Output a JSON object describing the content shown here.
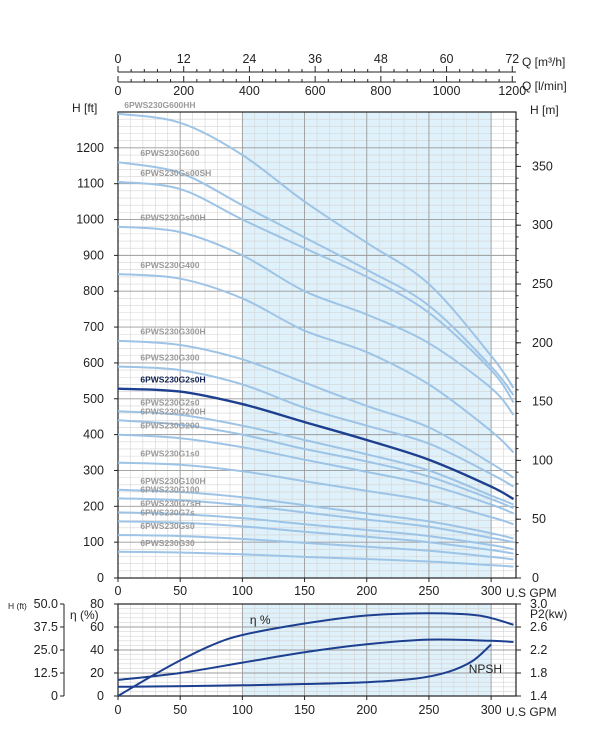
{
  "chart_data": [
    {
      "type": "line",
      "title": "",
      "top_axes": {
        "q_m3h": {
          "label": "Q [m³/h]",
          "ticks": [
            "0",
            "12",
            "24",
            "36",
            "48",
            "60",
            "72"
          ]
        },
        "q_lmin": {
          "label": "Q [l/min]",
          "ticks": [
            "0",
            "200",
            "400",
            "600",
            "800",
            "1000",
            "1200"
          ]
        }
      },
      "xlabel": "U.S GPM",
      "xlim": [
        0,
        320
      ],
      "x_ticks": [
        "0",
        "50",
        "100",
        "150",
        "200",
        "250",
        "300"
      ],
      "ylabel_left": "H [ft]",
      "ylim_left": [
        0,
        1300
      ],
      "y_ticks_left": [
        "0",
        "100",
        "200",
        "300",
        "400",
        "500",
        "600",
        "700",
        "800",
        "900",
        "1000",
        "1100",
        "1200"
      ],
      "ylabel_right": "H [m]",
      "y_ticks_right": [
        "0",
        "50",
        "100",
        "150",
        "200",
        "250",
        "300",
        "350"
      ],
      "grid": true,
      "shaded_x_range": [
        100,
        300
      ],
      "series": [
        {
          "name": "6PWS230G600HH",
          "highlight": false,
          "x": [
            0,
            50,
            100,
            150,
            200,
            250,
            300,
            318
          ],
          "y": [
            1295,
            1270,
            1180,
            1050,
            935,
            820,
            620,
            530
          ]
        },
        {
          "name": "6PWS230G600",
          "highlight": false,
          "x": [
            0,
            50,
            100,
            150,
            200,
            250,
            300,
            318
          ],
          "y": [
            1160,
            1130,
            1040,
            950,
            860,
            760,
            590,
            510
          ]
        },
        {
          "name": "6PWS230Gs00SH",
          "highlight": false,
          "x": [
            0,
            50,
            100,
            150,
            200,
            250,
            300,
            318
          ],
          "y": [
            1105,
            1085,
            1000,
            920,
            840,
            740,
            580,
            490
          ]
        },
        {
          "name": "6PWS230Gs00H",
          "highlight": false,
          "x": [
            0,
            50,
            100,
            150,
            200,
            250,
            300,
            318
          ],
          "y": [
            980,
            965,
            900,
            800,
            735,
            655,
            530,
            455
          ]
        },
        {
          "name": "6PWS230G400",
          "highlight": false,
          "x": [
            0,
            50,
            100,
            150,
            200,
            250,
            300,
            318
          ],
          "y": [
            848,
            835,
            780,
            690,
            630,
            540,
            410,
            350
          ]
        },
        {
          "name": "6PWS230G300H",
          "highlight": false,
          "x": [
            0,
            50,
            100,
            150,
            200,
            250,
            300,
            318
          ],
          "y": [
            662,
            650,
            610,
            545,
            480,
            420,
            320,
            280
          ]
        },
        {
          "name": "6PWS230G300",
          "highlight": false,
          "x": [
            0,
            50,
            100,
            150,
            200,
            250,
            300,
            318
          ],
          "y": [
            590,
            580,
            540,
            475,
            425,
            375,
            290,
            255
          ]
        },
        {
          "name": "6PWS230G2s0H",
          "highlight": true,
          "x": [
            0,
            50,
            100,
            150,
            200,
            250,
            300,
            318
          ],
          "y": [
            528,
            520,
            485,
            435,
            385,
            330,
            255,
            220
          ]
        },
        {
          "name": "6PWS230G2s0",
          "highlight": false,
          "x": [
            0,
            50,
            100,
            150,
            200,
            250,
            300,
            318
          ],
          "y": [
            465,
            455,
            425,
            385,
            345,
            300,
            230,
            205
          ]
        },
        {
          "name": "6PWS230G200H",
          "highlight": false,
          "x": [
            0,
            50,
            100,
            150,
            200,
            250,
            300,
            318
          ],
          "y": [
            440,
            428,
            400,
            360,
            325,
            283,
            220,
            195
          ]
        },
        {
          "name": "6PWS230G200",
          "highlight": false,
          "x": [
            0,
            50,
            100,
            150,
            200,
            250,
            300,
            318
          ],
          "y": [
            400,
            390,
            365,
            330,
            296,
            260,
            205,
            180
          ]
        },
        {
          "name": "6PWS230G1s0",
          "highlight": false,
          "x": [
            0,
            50,
            100,
            150,
            200,
            250,
            300,
            318
          ],
          "y": [
            322,
            316,
            298,
            270,
            243,
            215,
            170,
            150
          ]
        },
        {
          "name": "6PWS230G100H",
          "highlight": false,
          "x": [
            0,
            50,
            100,
            150,
            200,
            250,
            300,
            318
          ],
          "y": [
            246,
            240,
            225,
            203,
            180,
            158,
            125,
            110
          ]
        },
        {
          "name": "6PWS230G100",
          "highlight": false,
          "x": [
            0,
            50,
            100,
            150,
            200,
            250,
            300,
            318
          ],
          "y": [
            222,
            217,
            203,
            183,
            163,
            143,
            112,
            100
          ]
        },
        {
          "name": "6PWS230G7sH",
          "highlight": false,
          "x": [
            0,
            50,
            100,
            150,
            200,
            250,
            300,
            318
          ],
          "y": [
            183,
            178,
            167,
            150,
            134,
            117,
            92,
            80
          ]
        },
        {
          "name": "6PWS230G7s",
          "highlight": false,
          "x": [
            0,
            50,
            100,
            150,
            200,
            250,
            300,
            318
          ],
          "y": [
            158,
            154,
            144,
            129,
            115,
            100,
            78,
            68
          ]
        },
        {
          "name": "6PWS230Gs0",
          "highlight": false,
          "x": [
            0,
            50,
            100,
            150,
            200,
            250,
            300,
            318
          ],
          "y": [
            120,
            117,
            109,
            98,
            87,
            76,
            59,
            52
          ]
        },
        {
          "name": "6PWS230G30",
          "highlight": false,
          "x": [
            0,
            50,
            100,
            150,
            200,
            250,
            300,
            318
          ],
          "y": [
            73,
            71,
            66,
            59,
            53,
            46,
            36,
            32
          ]
        }
      ]
    },
    {
      "type": "line",
      "title": "",
      "xlabel": "U.S GPM",
      "xlim": [
        0,
        320
      ],
      "x_ticks": [
        "0",
        "50",
        "100",
        "150",
        "200",
        "250",
        "300"
      ],
      "y_npsh": {
        "label": "H (ft)",
        "ticks": [
          "0",
          "12.5",
          "25.0",
          "37.5",
          "50.0"
        ],
        "range": [
          0,
          50
        ]
      },
      "y_eta": {
        "label": "η (%)",
        "ticks": [
          "0",
          "20",
          "40",
          "60",
          "80"
        ],
        "range": [
          0,
          80
        ]
      },
      "y_p2": {
        "label": "P2(kw)",
        "ticks": [
          "1.4",
          "1.8",
          "2.2",
          "2.6",
          "3.0"
        ],
        "range": [
          1.4,
          3.0
        ]
      },
      "shaded_x_range": [
        100,
        300
      ],
      "annotations": {
        "eta": "η %",
        "npsh": "NPSH"
      },
      "series": [
        {
          "name": "η %",
          "axis": "eta",
          "x": [
            0,
            25,
            50,
            75,
            100,
            150,
            200,
            250,
            290,
            318
          ],
          "y": [
            0,
            16,
            31,
            44,
            53,
            63,
            70,
            72,
            70,
            62
          ]
        },
        {
          "name": "P2",
          "axis": "p2",
          "x": [
            0,
            50,
            100,
            150,
            200,
            250,
            300,
            318
          ],
          "y": [
            1.68,
            1.8,
            1.98,
            2.16,
            2.3,
            2.38,
            2.36,
            2.34
          ]
        },
        {
          "name": "NPSH",
          "axis": "npsh",
          "x": [
            0,
            100,
            150,
            200,
            240,
            265,
            285,
            300
          ],
          "y": [
            5,
            5.8,
            6.5,
            7.5,
            9.5,
            13,
            19,
            28
          ]
        }
      ]
    }
  ]
}
